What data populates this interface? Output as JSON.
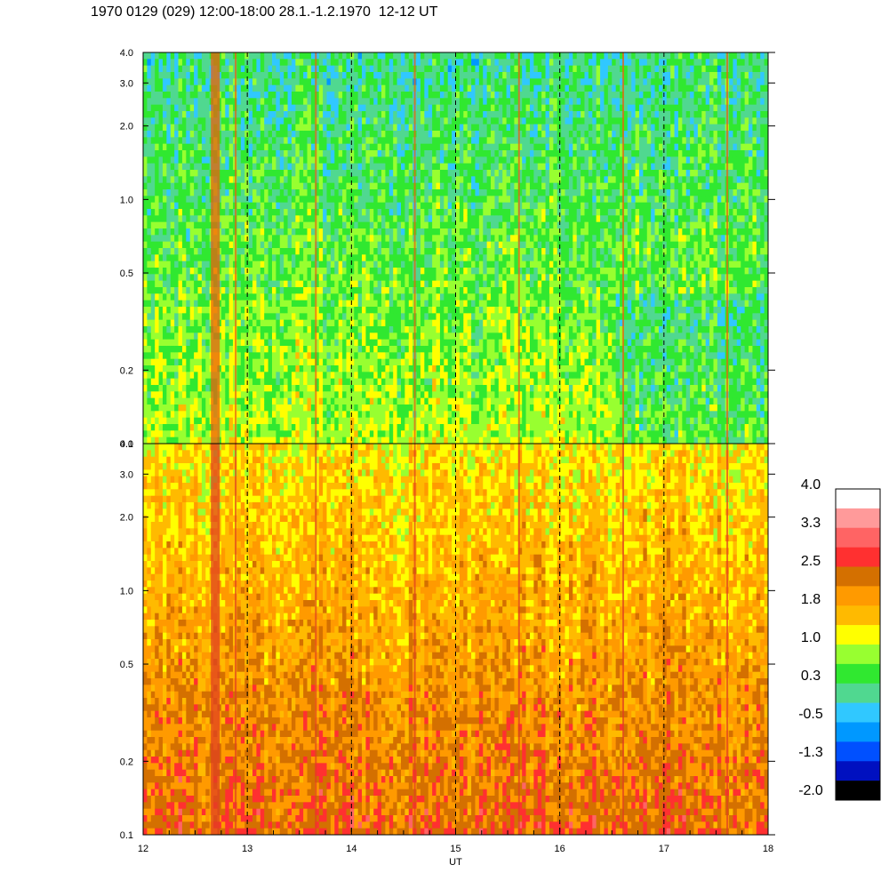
{
  "title": "1970 0129 (029) 12:00-18:00 28.1.-1.2.1970  12-12 UT",
  "chart_data": {
    "type": "heatmap",
    "xlabel": "UT",
    "x_ticks": [
      "12",
      "13",
      "14",
      "15",
      "16",
      "17",
      "18"
    ],
    "xlim": [
      12,
      18
    ],
    "y_scale": "log",
    "panels": [
      {
        "ylim": [
          0.1,
          4.0
        ],
        "y_ticks": [
          "0.1",
          "0.2",
          "0.5",
          "1.0",
          "2.0",
          "3.0",
          "4.0"
        ],
        "level_range": [
          -0.5,
          1.2
        ]
      },
      {
        "ylim": [
          0.1,
          4.0
        ],
        "y_ticks": [
          "0.1",
          "0.2",
          "0.5",
          "1.0",
          "2.0",
          "3.0",
          "4.0"
        ],
        "level_range": [
          0.6,
          2.6
        ]
      }
    ],
    "dashed_vertical_lines_at": [
      13,
      14,
      15,
      16,
      17
    ],
    "colorbar": {
      "labels": [
        "4.0",
        "3.3",
        "2.5",
        "1.8",
        "1.0",
        "0.3",
        "-0.5",
        "-1.3",
        "-2.0"
      ],
      "colors": [
        "#ffffff",
        "#ff9a9a",
        "#ff6464",
        "#ff3030",
        "#d47000",
        "#ff9a00",
        "#ffba00",
        "#ffff00",
        "#98ff30",
        "#30e830",
        "#50d890",
        "#30c8ff",
        "#0098ff",
        "#0050ff",
        "#0010c0",
        "#000000"
      ]
    }
  }
}
